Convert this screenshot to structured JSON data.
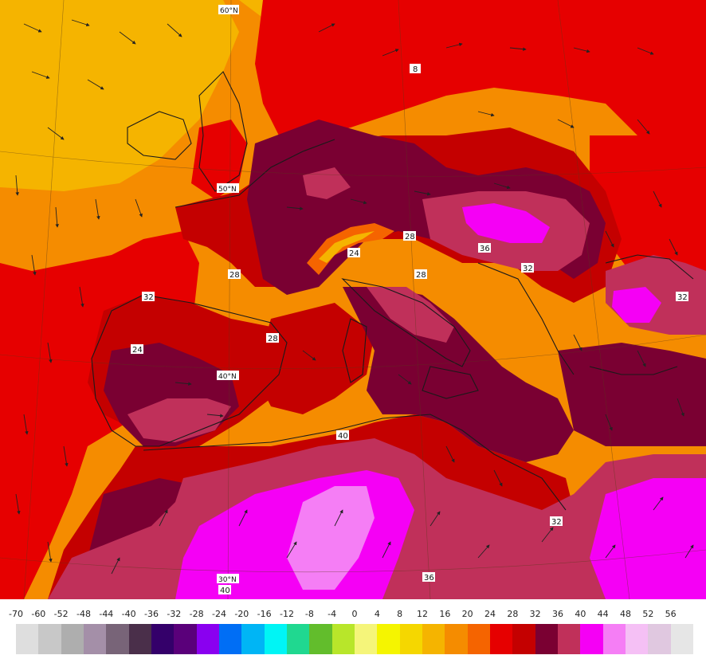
{
  "map": {
    "latitude_labels": [
      "60°N",
      "50°N",
      "40°N",
      "30°N"
    ],
    "contour_labels": [
      "8",
      "24",
      "28",
      "36",
      "32",
      "32",
      "28",
      "32",
      "24",
      "40",
      "28",
      "28",
      "32",
      "36",
      "40"
    ]
  },
  "scale": {
    "ticks": [
      "-70",
      "-60",
      "-52",
      "-48",
      "-44",
      "-40",
      "-36",
      "-32",
      "-28",
      "-24",
      "-20",
      "-16",
      "-12",
      "-8",
      "-4",
      "0",
      "4",
      "8",
      "12",
      "16",
      "20",
      "24",
      "28",
      "32",
      "36",
      "40",
      "44",
      "48",
      "52",
      "56"
    ],
    "colors": [
      "#dedede",
      "#c8c8c8",
      "#aeaeae",
      "#a48fa8",
      "#786478",
      "#4a2f4a",
      "#34006a",
      "#5a007a",
      "#8a00f0",
      "#006ef5",
      "#00b5f5",
      "#00f5f5",
      "#20d890",
      "#62bd2c",
      "#b8e62a",
      "#f5f57a",
      "#f5f500",
      "#f5d700",
      "#f5b400",
      "#f58c00",
      "#f56400",
      "#e60000",
      "#c40000",
      "#7a0032",
      "#c0305a",
      "#f500f5",
      "#f57ef5",
      "#f5c0f5",
      "#e0c8e0",
      "#e6e6e6"
    ]
  }
}
